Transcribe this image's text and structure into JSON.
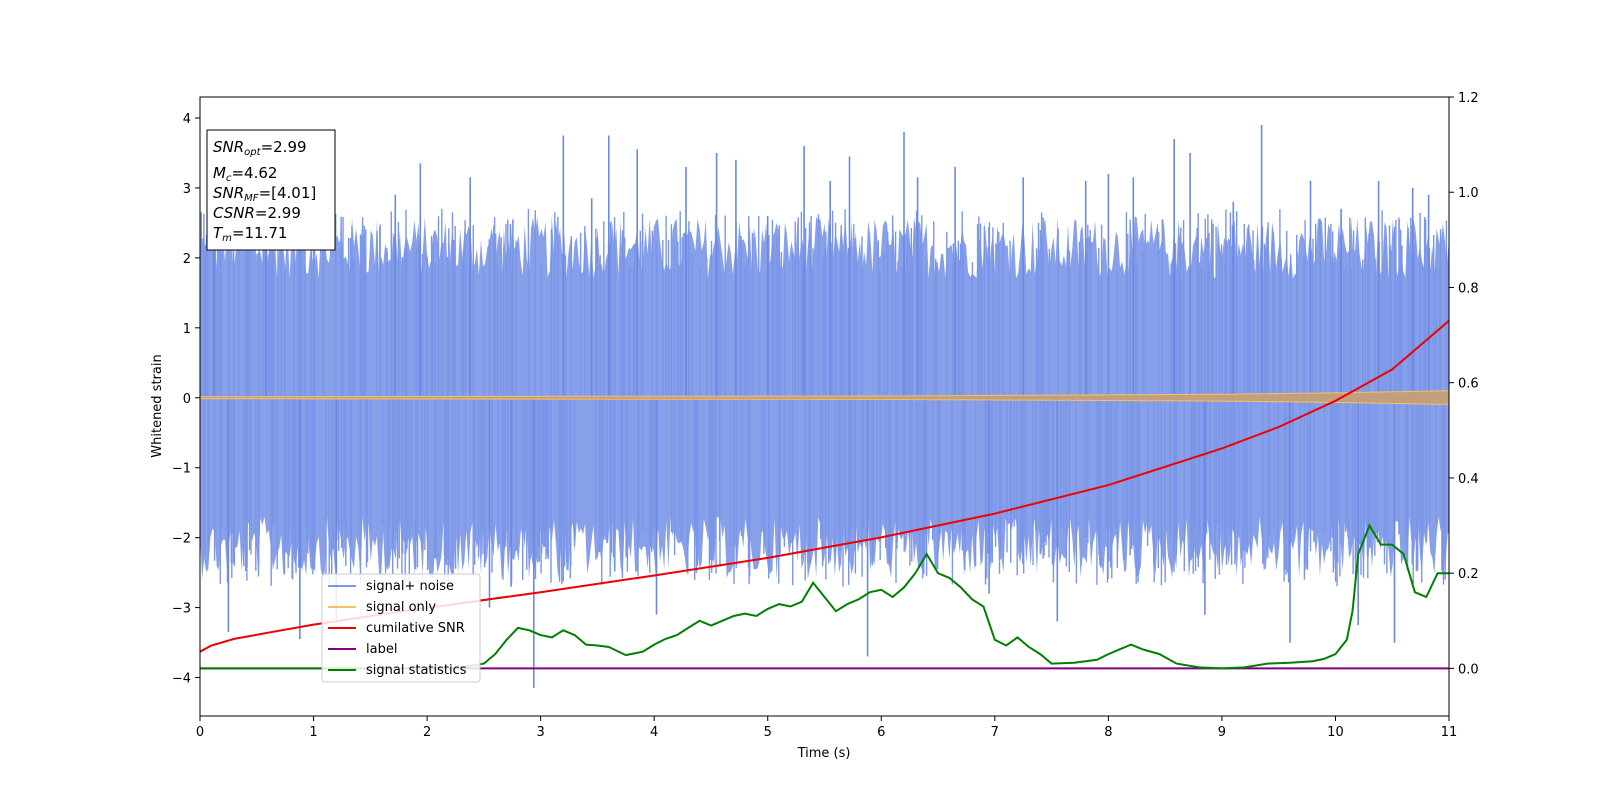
{
  "chart_data": {
    "type": "line",
    "title": "",
    "xlabel": "Time (s)",
    "ylabel": "Whitened strain",
    "xlim": [
      0,
      11
    ],
    "ylim": [
      -4.55,
      4.3
    ],
    "y2lim": [
      -0.1,
      1.2
    ],
    "x_ticks": [
      "0",
      "1",
      "2",
      "3",
      "4",
      "5",
      "6",
      "7",
      "8",
      "9",
      "10",
      "11"
    ],
    "y_ticks": [
      "4",
      "3",
      "2",
      "1",
      "0",
      "−1",
      "−2",
      "−3",
      "−4"
    ],
    "y2_ticks": [
      "1.2",
      "1.0",
      "0.8",
      "0.6",
      "0.4",
      "0.2",
      "0.0"
    ],
    "grid": false,
    "legend_position": "lower-left",
    "info_box": {
      "snr_opt": {
        "sym": "SNR",
        "sub": "opt",
        "val": "=2.99"
      },
      "mc": {
        "sym": "M",
        "sub": "c",
        "val": "=4.62"
      },
      "snr_mf": {
        "sym": "SNR",
        "sub": "MF",
        "val": "=[4.01]"
      },
      "csnr": {
        "sym": "CSNR",
        "val": "=2.99"
      },
      "tm": {
        "sym": "T",
        "sub": "m",
        "val": "=11.71"
      }
    },
    "series": [
      {
        "name": "signal+ noise",
        "axis": "left",
        "color": "#4169e1",
        "description_values": {
          "duration_s": 11,
          "mean": 0,
          "typical_band": [
            -1.8,
            1.8
          ],
          "max": 3.9,
          "min": -4.15
        },
        "spikes": [
          [
            0.12,
            3.8
          ],
          [
            0.25,
            -3.35
          ],
          [
            0.58,
            2.75
          ],
          [
            0.88,
            -3.45
          ],
          [
            1.2,
            -3.2
          ],
          [
            1.72,
            2.9
          ],
          [
            1.94,
            3.35
          ],
          [
            2.38,
            3.15
          ],
          [
            2.55,
            -3.0
          ],
          [
            2.74,
            -2.7
          ],
          [
            2.94,
            -4.15
          ],
          [
            3.2,
            3.75
          ],
          [
            3.45,
            2.85
          ],
          [
            3.6,
            3.75
          ],
          [
            3.85,
            3.55
          ],
          [
            4.02,
            -3.1
          ],
          [
            4.28,
            3.3
          ],
          [
            4.55,
            3.5
          ],
          [
            4.72,
            3.4
          ],
          [
            5.0,
            2.6
          ],
          [
            5.32,
            3.6
          ],
          [
            5.55,
            3.1
          ],
          [
            5.72,
            3.45
          ],
          [
            5.88,
            -3.7
          ],
          [
            6.2,
            3.8
          ],
          [
            6.32,
            3.15
          ],
          [
            6.65,
            3.3
          ],
          [
            6.95,
            -2.8
          ],
          [
            7.25,
            3.15
          ],
          [
            7.55,
            -3.2
          ],
          [
            7.8,
            3.1
          ],
          [
            8.0,
            3.2
          ],
          [
            8.22,
            3.15
          ],
          [
            8.58,
            3.7
          ],
          [
            8.72,
            3.5
          ],
          [
            8.85,
            -3.1
          ],
          [
            9.1,
            2.8
          ],
          [
            9.35,
            3.9
          ],
          [
            9.6,
            -3.5
          ],
          [
            9.78,
            3.1
          ],
          [
            10.05,
            2.7
          ],
          [
            10.2,
            -3.25
          ],
          [
            10.38,
            3.1
          ],
          [
            10.52,
            -3.5
          ],
          [
            10.68,
            3.0
          ],
          [
            10.82,
            2.9
          ]
        ]
      },
      {
        "name": "signal only",
        "axis": "left",
        "color": "#f5bf66",
        "envelope": [
          [
            0,
            0.015
          ],
          [
            6,
            0.025
          ],
          [
            9,
            0.05
          ],
          [
            10,
            0.07
          ],
          [
            11,
            0.1
          ]
        ]
      },
      {
        "name": "cumilative SNR",
        "axis": "right",
        "color": "#ee0000",
        "x": [
          0,
          0.1,
          0.3,
          0.6,
          1,
          1.5,
          2,
          3,
          4,
          5,
          6,
          7,
          8,
          9,
          9.5,
          10,
          10.5,
          11
        ],
        "y": [
          0.035,
          0.048,
          0.062,
          0.075,
          0.092,
          0.11,
          0.127,
          0.16,
          0.195,
          0.232,
          0.275,
          0.325,
          0.385,
          0.462,
          0.507,
          0.562,
          0.628,
          0.73
        ]
      },
      {
        "name": "label",
        "axis": "right",
        "color": "#800080",
        "x": [
          0,
          11
        ],
        "y": [
          0,
          0
        ]
      },
      {
        "name": "signal statistics",
        "axis": "right",
        "color": "#008000",
        "x": [
          0,
          0.5,
          1,
          1.5,
          2,
          2.3,
          2.5,
          2.6,
          2.7,
          2.8,
          2.9,
          3.0,
          3.1,
          3.2,
          3.3,
          3.4,
          3.5,
          3.6,
          3.75,
          3.9,
          4.0,
          4.1,
          4.2,
          4.3,
          4.4,
          4.5,
          4.6,
          4.7,
          4.8,
          4.9,
          5.0,
          5.1,
          5.2,
          5.3,
          5.4,
          5.5,
          5.6,
          5.7,
          5.8,
          5.9,
          6.0,
          6.1,
          6.2,
          6.3,
          6.4,
          6.45,
          6.5,
          6.6,
          6.7,
          6.8,
          6.9,
          7.0,
          7.1,
          7.2,
          7.3,
          7.4,
          7.5,
          7.7,
          7.9,
          8.0,
          8.1,
          8.2,
          8.3,
          8.45,
          8.6,
          8.8,
          9.0,
          9.2,
          9.4,
          9.6,
          9.8,
          9.9,
          10.0,
          10.1,
          10.15,
          10.2,
          10.3,
          10.4,
          10.5,
          10.6,
          10.7,
          10.8,
          10.9,
          11.0
        ],
        "y": [
          0,
          0,
          0,
          0,
          0,
          0.002,
          0.01,
          0.03,
          0.06,
          0.085,
          0.08,
          0.07,
          0.065,
          0.08,
          0.07,
          0.05,
          0.048,
          0.045,
          0.028,
          0.035,
          0.05,
          0.062,
          0.07,
          0.085,
          0.1,
          0.09,
          0.1,
          0.11,
          0.115,
          0.11,
          0.125,
          0.135,
          0.13,
          0.14,
          0.18,
          0.15,
          0.12,
          0.135,
          0.145,
          0.16,
          0.165,
          0.15,
          0.17,
          0.2,
          0.24,
          0.22,
          0.2,
          0.19,
          0.17,
          0.145,
          0.13,
          0.06,
          0.048,
          0.065,
          0.045,
          0.03,
          0.01,
          0.012,
          0.018,
          0.03,
          0.04,
          0.05,
          0.04,
          0.03,
          0.01,
          0.002,
          0.0,
          0.002,
          0.01,
          0.012,
          0.015,
          0.02,
          0.03,
          0.06,
          0.12,
          0.24,
          0.3,
          0.26,
          0.26,
          0.24,
          0.16,
          0.15,
          0.2,
          0.2
        ]
      }
    ]
  }
}
